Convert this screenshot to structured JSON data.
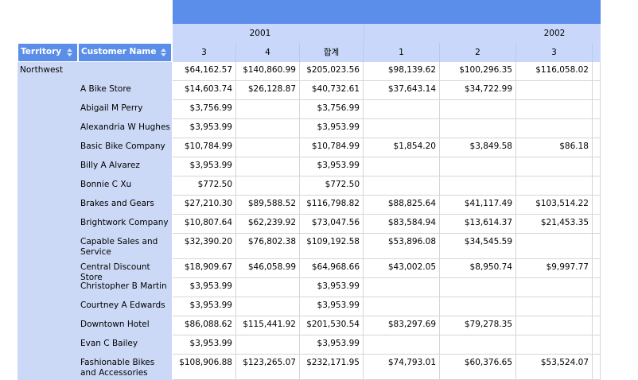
{
  "column_groups": [
    "2001",
    "2002"
  ],
  "columns": [
    "3",
    "4",
    "합계",
    "1",
    "2",
    "3"
  ],
  "row_headers": [
    "Territory",
    "Customer Name"
  ],
  "territory": "Northwest",
  "rows": [
    {
      "cells": [
        "$64,162.57",
        "$140,860.99",
        "$205,023.56",
        "$98,139.62",
        "$100,296.35",
        "$116,058.02"
      ]
    },
    {
      "customer": "A Bike Store",
      "cells": [
        "$14,603.74",
        "$26,128.87",
        "$40,732.61",
        "$37,643.14",
        "$34,722.99",
        null
      ]
    },
    {
      "customer": "Abigail M Perry",
      "cells": [
        "$3,756.99",
        null,
        "$3,756.99",
        null,
        null,
        null
      ]
    },
    {
      "customer": "Alexandria W Hughes",
      "cells": [
        "$3,953.99",
        null,
        "$3,953.99",
        null,
        null,
        null
      ]
    },
    {
      "customer": "Basic Bike Company",
      "cells": [
        "$10,784.99",
        null,
        "$10,784.99",
        "$1,854.20",
        "$3,849.58",
        "$86.18"
      ]
    },
    {
      "customer": "Billy A Alvarez",
      "cells": [
        "$3,953.99",
        null,
        "$3,953.99",
        null,
        null,
        null
      ]
    },
    {
      "customer": "Bonnie C Xu",
      "cells": [
        "$772.50",
        null,
        "$772.50",
        null,
        null,
        null
      ]
    },
    {
      "customer": "Brakes and Gears",
      "cells": [
        "$27,210.30",
        "$89,588.52",
        "$116,798.82",
        "$88,825.64",
        "$41,117.49",
        "$103,514.22"
      ]
    },
    {
      "customer": "Brightwork Company",
      "cells": [
        "$10,807.64",
        "$62,239.92",
        "$73,047.56",
        "$83,584.94",
        "$13,614.37",
        "$21,453.35"
      ]
    },
    {
      "customer": "Capable Sales and Service",
      "cells": [
        "$32,390.20",
        "$76,802.38",
        "$109,192.58",
        "$53,896.08",
        "$34,545.59",
        null
      ]
    },
    {
      "customer": "Central Discount Store",
      "cells": [
        "$18,909.67",
        "$46,058.99",
        "$64,968.66",
        "$43,002.05",
        "$8,950.74",
        "$9,997.77"
      ]
    },
    {
      "customer": "Christopher B Martin",
      "cells": [
        "$3,953.99",
        null,
        "$3,953.99",
        null,
        null,
        null
      ]
    },
    {
      "customer": "Courtney A Edwards",
      "cells": [
        "$3,953.99",
        null,
        "$3,953.99",
        null,
        null,
        null
      ]
    },
    {
      "customer": "Downtown Hotel",
      "cells": [
        "$86,088.62",
        "$115,441.92",
        "$201,530.54",
        "$83,297.69",
        "$79,278.35",
        null
      ]
    },
    {
      "customer": "Evan C Bailey",
      "cells": [
        "$3,953.99",
        null,
        "$3,953.99",
        null,
        null,
        null
      ]
    },
    {
      "customer": "Fashionable Bikes and Accessories",
      "cells": [
        "$108,906.88",
        "$123,265.07",
        "$232,171.95",
        "$74,793.01",
        "$60,376.65",
        "$53,524.07"
      ]
    }
  ]
}
